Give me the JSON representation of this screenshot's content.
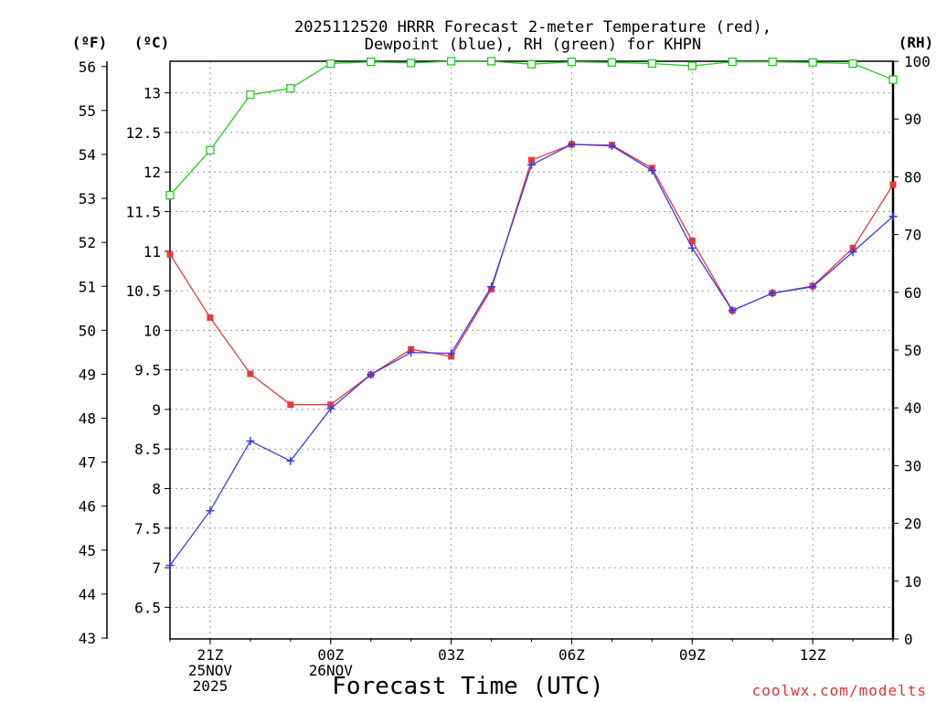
{
  "chart_data": {
    "type": "line",
    "title_line1": "2025112520 HRRR Forecast 2-meter Temperature (red),",
    "title_line2": "Dewpoint (blue), RH (green) for KHPN",
    "xlabel": "Forecast Time (UTC)",
    "credit": "coolwx.com/modelts",
    "units": {
      "fahrenheit": "(ºF)",
      "celsius": "(ºC)",
      "rh": "(RH)"
    },
    "x_hours": [
      0,
      1,
      2,
      3,
      4,
      5,
      6,
      7,
      8,
      9,
      10,
      11,
      12,
      13,
      14,
      15,
      16,
      17,
      18
    ],
    "x_ticks": [
      {
        "hour": 1,
        "lines": [
          "21Z",
          "25NOV",
          "2025"
        ]
      },
      {
        "hour": 4,
        "lines": [
          "00Z",
          "26NOV"
        ]
      },
      {
        "hour": 7,
        "lines": [
          "03Z"
        ]
      },
      {
        "hour": 10,
        "lines": [
          "06Z"
        ]
      },
      {
        "hour": 13,
        "lines": [
          "09Z"
        ]
      },
      {
        "hour": 16,
        "lines": [
          "12Z"
        ]
      }
    ],
    "celsius_axis": {
      "range": [
        6.1,
        13.4
      ],
      "ticks": [
        "6.5",
        "7",
        "7.5",
        "8",
        "8.5",
        "9",
        "9.5",
        "10",
        "10.5",
        "11",
        "11.5",
        "12",
        "12.5",
        "13"
      ]
    },
    "fahrenheit_axis": {
      "range": [
        42.98,
        56.12
      ],
      "ticks": [
        "43",
        "44",
        "45",
        "46",
        "47",
        "48",
        "49",
        "50",
        "51",
        "52",
        "53",
        "54",
        "55",
        "56"
      ]
    },
    "rh_axis": {
      "range": [
        0,
        100
      ],
      "ticks": [
        "0",
        "10",
        "20",
        "30",
        "40",
        "50",
        "60",
        "70",
        "80",
        "90",
        "100"
      ]
    },
    "series": [
      {
        "name": "Temperature",
        "color": "#e83a3a",
        "marker": "square-filled",
        "axis": "celsius",
        "values": [
          10.96,
          10.16,
          9.45,
          9.06,
          9.06,
          9.44,
          9.76,
          9.67,
          10.52,
          12.15,
          12.35,
          12.34,
          12.05,
          11.13,
          10.25,
          10.47,
          10.56,
          11.04,
          11.84
        ]
      },
      {
        "name": "Dewpoint",
        "color": "#3a3ae8",
        "marker": "plus",
        "axis": "celsius",
        "values": [
          7.03,
          7.72,
          8.6,
          8.35,
          9.01,
          9.44,
          9.72,
          9.71,
          10.55,
          12.09,
          12.35,
          12.33,
          12.02,
          11.04,
          10.25,
          10.47,
          10.55,
          10.99,
          11.44
        ]
      },
      {
        "name": "RH",
        "color": "#22cc22",
        "marker": "square-open",
        "axis": "rh",
        "values": [
          76.8,
          84.6,
          94.2,
          95.3,
          99.6,
          99.9,
          99.7,
          100.0,
          100.0,
          99.5,
          99.9,
          99.8,
          99.6,
          99.2,
          99.9,
          99.9,
          99.8,
          99.6,
          96.8
        ]
      }
    ]
  }
}
